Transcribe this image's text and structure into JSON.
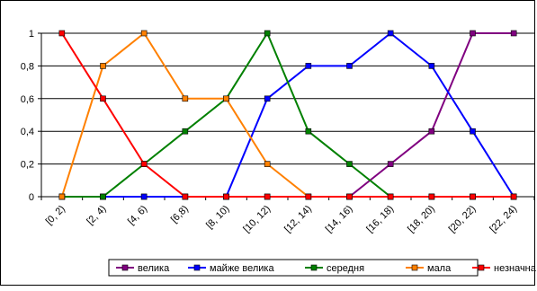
{
  "chart_data": {
    "type": "line",
    "categories": [
      "[0, 2)",
      "[2, 4)",
      "[4, 6)",
      "[6,8)",
      "[8, 10)",
      "[10, 12)",
      "[12, 14)",
      "[14, 16)",
      "[16, 18)",
      "[18, 20)",
      "[20, 22)",
      "[22, 24)"
    ],
    "y_ticks": [
      "0",
      "0,2",
      "0,4",
      "0,6",
      "0,8",
      "1"
    ],
    "ylim": [
      0,
      1
    ],
    "grid": "horizontal",
    "legend": "bottom",
    "series": [
      {
        "name": "велика",
        "color": "#800080",
        "values": [
          0,
          0,
          0,
          0,
          0,
          0,
          0,
          0,
          0.2,
          0.4,
          1,
          1
        ]
      },
      {
        "name": "майже велика",
        "color": "#0000ff",
        "values": [
          0,
          0,
          0,
          0,
          0,
          0.6,
          0.8,
          0.8,
          1,
          0.8,
          0.4,
          0
        ]
      },
      {
        "name": "середня",
        "color": "#008000",
        "values": [
          0,
          0,
          0.2,
          0.4,
          0.6,
          1,
          0.4,
          0.2,
          0,
          0,
          0,
          0
        ]
      },
      {
        "name": "мала",
        "color": "#ff8000",
        "values": [
          0,
          0.8,
          1,
          0.6,
          0.6,
          0.2,
          0,
          0,
          0,
          0,
          0,
          0
        ]
      },
      {
        "name": "незначна",
        "color": "#ff0000",
        "values": [
          1,
          0.6,
          0.2,
          0,
          0,
          0,
          0,
          0,
          0,
          0,
          0,
          0
        ]
      }
    ]
  }
}
